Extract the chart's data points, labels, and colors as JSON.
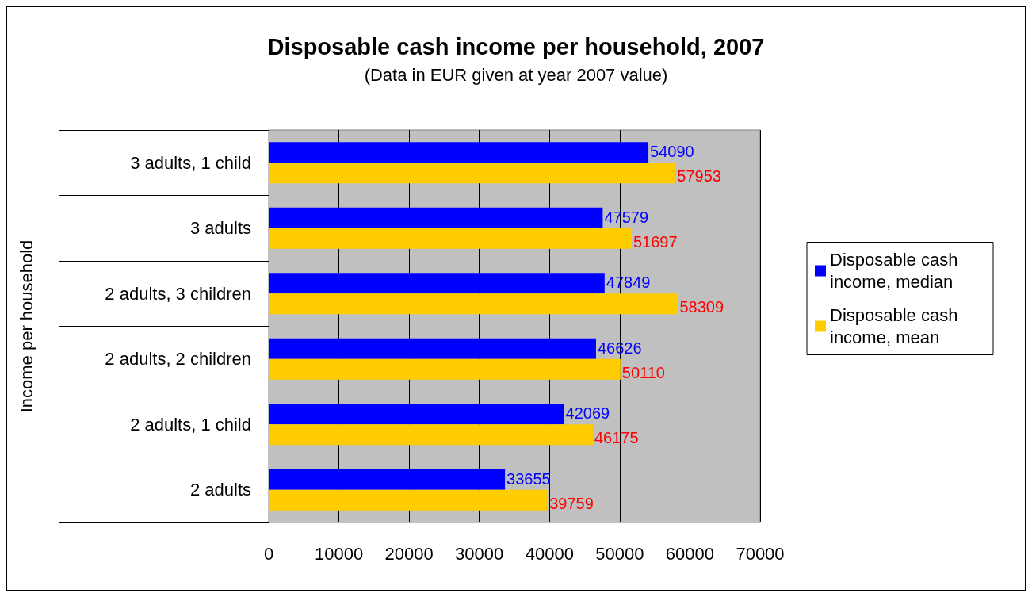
{
  "chart_data": {
    "type": "bar",
    "orientation": "horizontal",
    "title": "Disposable cash income per household, 2007",
    "subtitle": "(Data in EUR given at year 2007 value)",
    "ylabel": "Income per household",
    "categories": [
      "3 adults, 1 child",
      "3 adults",
      "2 adults, 3 children",
      "2 adults, 2 children",
      "2 adults, 1 child",
      "2 adults"
    ],
    "series": [
      {
        "name": "Disposable cash income, median",
        "color": "#0000ff",
        "values": [
          54090,
          47579,
          47849,
          46626,
          42069,
          33655
        ]
      },
      {
        "name": "Disposable cash income, mean",
        "color": "#ffcc00",
        "values": [
          57953,
          51697,
          58309,
          50110,
          46175,
          39759
        ]
      }
    ],
    "xlim": [
      0,
      70000
    ],
    "xticks": [
      0,
      10000,
      20000,
      30000,
      40000,
      50000,
      60000,
      70000
    ],
    "grid": "x",
    "legend": "right",
    "data_labels": true
  }
}
